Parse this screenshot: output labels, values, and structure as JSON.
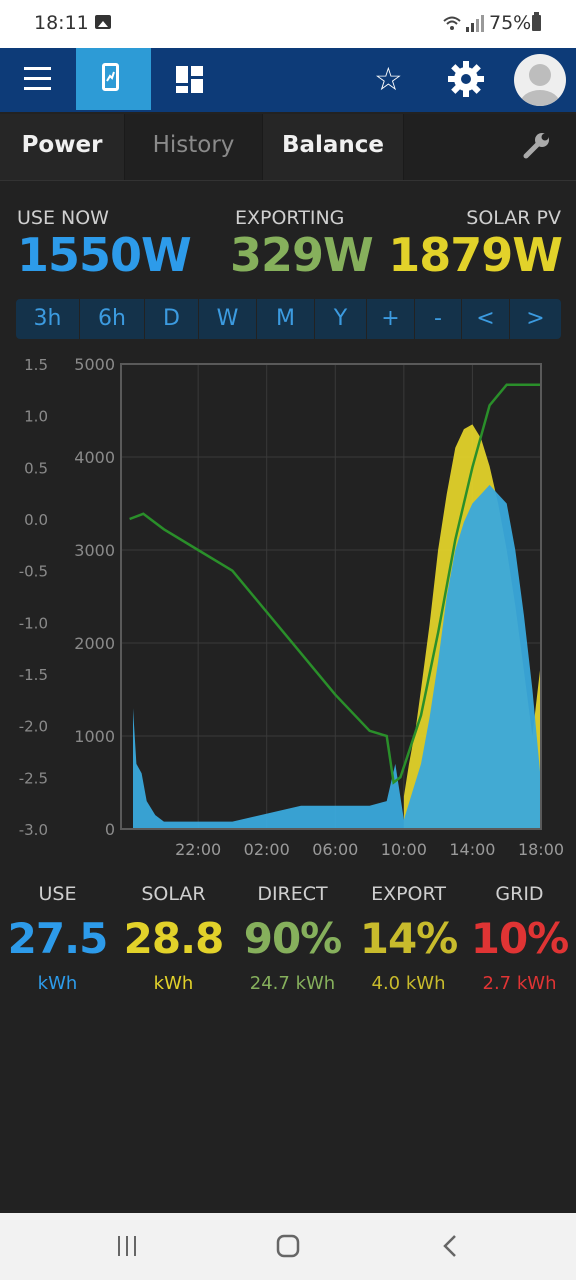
{
  "status": {
    "time": "18:11",
    "battery": "75%"
  },
  "tabs": [
    "Power",
    "History",
    "Balance"
  ],
  "stats": [
    {
      "label": "USE NOW",
      "value": "1550W",
      "color": "#2d9bea"
    },
    {
      "label": "EXPORTING",
      "value": "329W",
      "color": "#86b05c"
    },
    {
      "label": "SOLAR PV",
      "value": "1879W",
      "color": "#e2d22a"
    }
  ],
  "ranges": [
    "3h",
    "6h",
    "D",
    "W",
    "M",
    "Y",
    "+",
    "-",
    "<",
    ">"
  ],
  "chart_data": {
    "type": "area",
    "left_axis_ticks": [
      "1.5",
      "1.0",
      "0.5",
      "0.0",
      "-0.5",
      "-1.0",
      "-1.5",
      "-2.0",
      "-2.5",
      "-3.0"
    ],
    "right_axis_ticks": [
      "5000",
      "4000",
      "3000",
      "2000",
      "1000",
      "0"
    ],
    "x_tick_labels": [
      "22:00",
      "02:00",
      "06:00",
      "10:00",
      "14:00",
      "18:00"
    ],
    "ylim": [
      0,
      5000
    ],
    "y2lim": [
      -3.0,
      1.5
    ],
    "series": [
      {
        "color": "#e2d22a",
        "x": [
          10.0,
          10.3,
          10.7,
          11.0,
          11.5,
          12.0,
          12.5,
          13.0,
          13.5,
          14.0,
          14.5,
          15.0,
          15.5,
          16.0,
          16.5,
          17.0,
          17.5,
          18.0
        ],
        "values": [
          350,
          700,
          1100,
          1500,
          2200,
          3000,
          3600,
          4100,
          4300,
          4350,
          4200,
          3900,
          3500,
          3000,
          2400,
          1700,
          1000,
          1800
        ]
      },
      {
        "color": "#3aa9dc",
        "x": [
          -5.8,
          -5.6,
          -5.3,
          -5.0,
          -4.5,
          -4.0,
          0.0,
          4.0,
          8.0,
          9.0,
          9.5,
          10.0,
          10.5,
          11.0,
          11.5,
          12.0,
          12.5,
          13.0,
          13.5,
          14.0,
          14.5,
          15.0,
          15.5,
          16.0,
          16.5,
          17.0,
          17.5,
          18.0
        ],
        "values": [
          1300,
          700,
          600,
          300,
          150,
          80,
          80,
          250,
          250,
          300,
          700,
          100,
          400,
          700,
          1200,
          1800,
          2500,
          3000,
          3300,
          3500,
          3600,
          3700,
          3600,
          3500,
          3000,
          2300,
          1500,
          500
        ]
      },
      {
        "color": "#2a8f2a",
        "x": [
          -6.0,
          -5.2,
          -4.0,
          -2.0,
          0.0,
          2.0,
          4.0,
          6.0,
          8.0,
          9.0,
          9.4,
          9.8,
          10.2,
          11.0,
          12.0,
          13.0,
          14.0,
          15.0,
          16.0,
          17.0,
          17.5,
          18.0
        ],
        "values": [
          -0.0,
          0.05,
          -0.1,
          -0.3,
          -0.5,
          -0.9,
          -1.3,
          -1.7,
          -2.05,
          -2.1,
          -2.55,
          -2.5,
          -2.3,
          -1.9,
          -1.1,
          -0.2,
          0.5,
          1.1,
          1.3,
          1.3,
          1.3,
          1.3
        ]
      }
    ]
  },
  "summary": [
    {
      "label": "USE",
      "value": "27.5",
      "sub": "kWh",
      "color": "#2d9bea"
    },
    {
      "label": "SOLAR",
      "value": "28.8",
      "sub": "kWh",
      "color": "#e2d22a"
    },
    {
      "label": "DIRECT",
      "value": "90%",
      "sub": "24.7 kWh",
      "color": "#86b05c"
    },
    {
      "label": "EXPORT",
      "value": "14%",
      "sub": "4.0 kWh",
      "color": "#c8bb2c"
    },
    {
      "label": "GRID",
      "value": "10%",
      "sub": "2.7 kWh",
      "color": "#e03434"
    }
  ],
  "icons": {
    "menu": "hamburger-icon",
    "app": "phone-chart-icon",
    "dashboard": "dashboard-icon",
    "favorite": "star-icon",
    "settings": "gear-icon",
    "account": "avatar-icon",
    "tools": "wrench-icon",
    "nav_recent": "recents-icon",
    "nav_home": "home-icon",
    "nav_back": "back-icon"
  }
}
